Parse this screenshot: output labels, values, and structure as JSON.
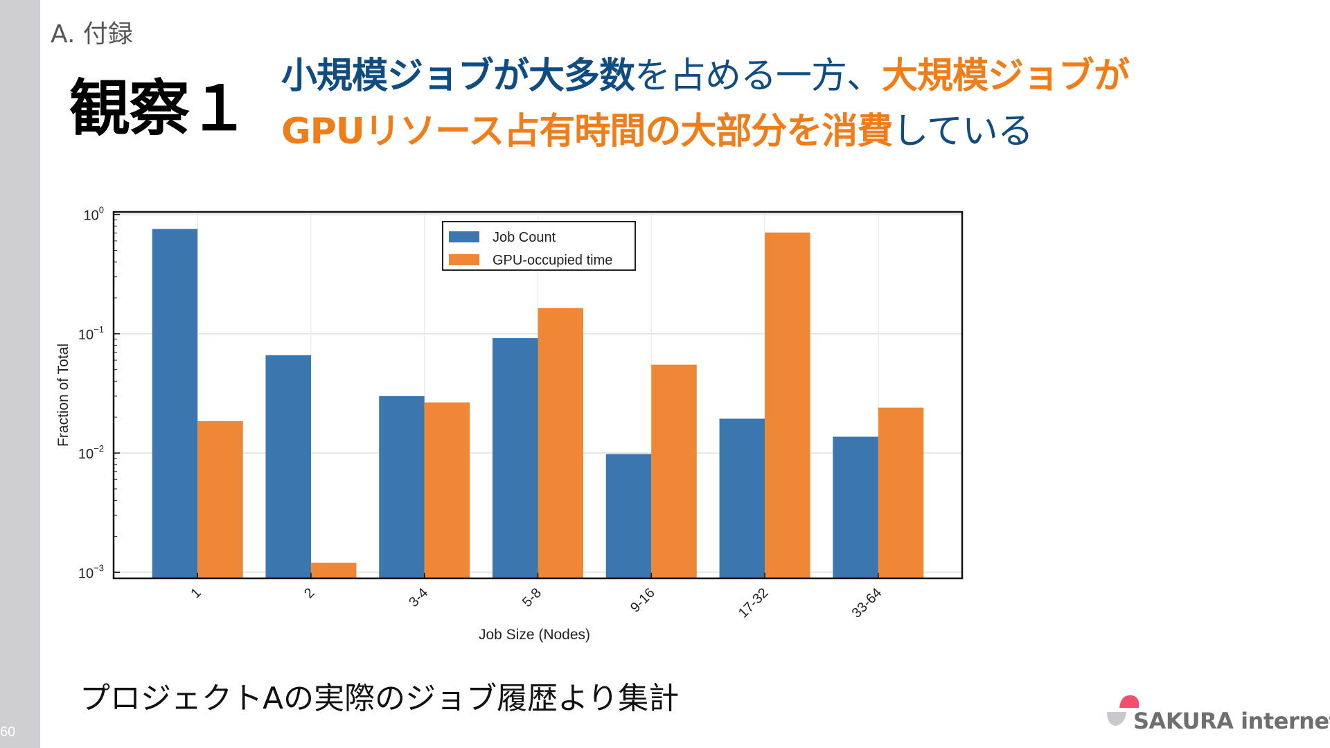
{
  "slide": {
    "page_number": "60",
    "section": "A. 付録",
    "observation_title": "観察１",
    "headline": {
      "line1": [
        {
          "text": "小規模ジョブが大多数",
          "style": "blue-bold"
        },
        {
          "text": "を占める一方、",
          "style": "blue"
        },
        {
          "text": "大規模ジョブが",
          "style": "orange-bold"
        }
      ],
      "line2": [
        {
          "text": "GPUリソース占有時間の大部分を消費",
          "style": "orange-bold"
        },
        {
          "text": "している",
          "style": "blue"
        }
      ]
    },
    "caption": "プロジェクトAの実際のジョブ履歴より集計",
    "logo_text": "SAKURA internet"
  },
  "colors": {
    "blue": "#0f4c81",
    "orange": "#ef7d1a",
    "bar_blue": "#3b76ae",
    "bar_orange": "#ee8736"
  },
  "chart_data": {
    "type": "bar",
    "title": "",
    "xlabel": "Job Size (Nodes)",
    "ylabel": "Fraction of Total",
    "yscale": "log",
    "ylim": [
      0.00089,
      1.05
    ],
    "yticks": [
      {
        "value": 1,
        "label": "10",
        "exp": "0"
      },
      {
        "value": 0.1,
        "label": "10",
        "exp": "−1"
      },
      {
        "value": 0.01,
        "label": "10",
        "exp": "−2"
      },
      {
        "value": 0.001,
        "label": "10",
        "exp": "−3"
      }
    ],
    "grid": true,
    "legend": "top-center",
    "categories": [
      "1",
      "2",
      "3-4",
      "5-8",
      "9-16",
      "17-32",
      "33-64"
    ],
    "series": [
      {
        "name": "Job Count",
        "color": "#3b76ae",
        "values": [
          0.755,
          0.066,
          0.03,
          0.092,
          0.0098,
          0.0194,
          0.0137
        ]
      },
      {
        "name": "GPU-occupied time",
        "color": "#ee8736",
        "values": [
          0.0185,
          0.0012,
          0.0265,
          0.164,
          0.055,
          0.706,
          0.024
        ]
      }
    ]
  }
}
